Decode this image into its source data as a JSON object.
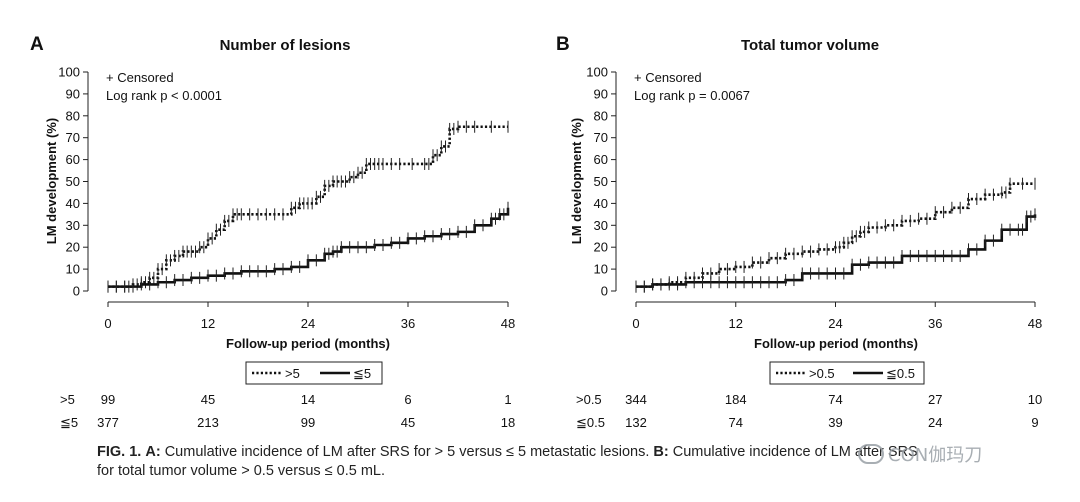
{
  "chart_data": [
    {
      "type": "line",
      "panel_letter": "A",
      "title": "Number of lesions",
      "xlabel": "Follow-up period (months)",
      "ylabel": "LM development (%)",
      "xlim": [
        0,
        48
      ],
      "ylim": [
        0,
        100
      ],
      "xticks": [
        0,
        12,
        24,
        36,
        48
      ],
      "yticks": [
        0,
        10,
        20,
        30,
        40,
        50,
        60,
        70,
        80,
        90,
        100
      ],
      "annotations": [
        "+ Censored",
        "Log rank p < 0.0001"
      ],
      "legend_position": "bottom",
      "series": [
        {
          "name": ">5",
          "style": "dotted",
          "x": [
            0,
            2,
            3,
            4,
            5,
            6,
            7,
            8,
            9,
            10,
            11,
            12,
            13,
            14,
            15,
            16,
            18,
            20,
            22,
            23,
            24,
            25,
            26,
            27,
            28,
            29,
            30,
            31,
            32,
            33,
            35,
            38,
            39,
            40,
            41,
            42,
            44,
            48
          ],
          "y": [
            2,
            2,
            3,
            4,
            6,
            10,
            14,
            16,
            18,
            18,
            20,
            24,
            28,
            32,
            35,
            35,
            35,
            35,
            38,
            40,
            40,
            43,
            48,
            50,
            50,
            52,
            54,
            58,
            58,
            58,
            58,
            58,
            62,
            66,
            74,
            75,
            75,
            75
          ]
        },
        {
          "name": "≦5",
          "style": "solid",
          "x": [
            0,
            2,
            4,
            6,
            8,
            10,
            12,
            14,
            16,
            18,
            20,
            22,
            24,
            26,
            27,
            28,
            30,
            32,
            34,
            36,
            38,
            40,
            42,
            44,
            46,
            47,
            48
          ],
          "y": [
            2,
            2,
            3,
            4,
            5,
            6,
            7,
            8,
            9,
            9,
            10,
            11,
            14,
            17,
            18,
            20,
            20,
            21,
            22,
            24,
            25,
            26,
            27,
            30,
            33,
            35,
            38
          ]
        }
      ],
      "risk_table": [
        {
          "label": ">5",
          "values": [
            "99",
            "45",
            "14",
            "6",
            "1"
          ]
        },
        {
          "label": "≦5",
          "values": [
            "377",
            "213",
            "99",
            "45",
            "18"
          ]
        }
      ]
    },
    {
      "type": "line",
      "panel_letter": "B",
      "title": "Total tumor volume",
      "xlabel": "Follow-up period (months)",
      "ylabel": "LM development (%)",
      "xlim": [
        0,
        48
      ],
      "ylim": [
        0,
        100
      ],
      "xticks": [
        0,
        12,
        24,
        36,
        48
      ],
      "yticks": [
        0,
        10,
        20,
        30,
        40,
        50,
        60,
        70,
        80,
        90,
        100
      ],
      "annotations": [
        "+ Censored",
        "Log rank p = 0.0067"
      ],
      "legend_position": "bottom",
      "series": [
        {
          "name": ">0.5",
          "style": "dotted",
          "x": [
            0,
            2,
            4,
            6,
            8,
            10,
            12,
            14,
            16,
            18,
            20,
            22,
            24,
            25,
            26,
            27,
            28,
            30,
            32,
            34,
            36,
            38,
            40,
            42,
            44,
            45,
            48
          ],
          "y": [
            2,
            3,
            4,
            6,
            8,
            10,
            11,
            13,
            15,
            17,
            18,
            19,
            20,
            22,
            25,
            27,
            29,
            30,
            32,
            33,
            36,
            38,
            42,
            44,
            45,
            49,
            49
          ]
        },
        {
          "name": "≦0.5",
          "style": "solid",
          "x": [
            0,
            2,
            4,
            6,
            8,
            10,
            12,
            14,
            16,
            18,
            20,
            22,
            24,
            26,
            28,
            30,
            32,
            34,
            36,
            38,
            40,
            42,
            44,
            46,
            47,
            48
          ],
          "y": [
            2,
            3,
            3,
            4,
            4,
            4,
            4,
            4,
            4,
            5,
            8,
            8,
            8,
            12,
            13,
            13,
            16,
            16,
            16,
            16,
            19,
            23,
            28,
            28,
            34,
            35
          ]
        }
      ],
      "risk_table": [
        {
          "label": ">0.5",
          "values": [
            "344",
            "184",
            "74",
            "27",
            "10"
          ]
        },
        {
          "label": "≦0.5",
          "values": [
            "132",
            "74",
            "39",
            "24",
            "9"
          ]
        }
      ]
    }
  ],
  "caption": {
    "fig_label": "FIG. 1.",
    "a_label": "A:",
    "a_text": "Cumulative incidence of LM after SRS for > 5 versus ≤ 5 metastatic lesions.",
    "b_label": "B:",
    "b_text": "Cumulative incidence of LM after SRS",
    "line2": "for total tumor volume > 0.5 versus ≤ 0.5 mL."
  },
  "watermark": {
    "text": "CON伽玛刀"
  }
}
